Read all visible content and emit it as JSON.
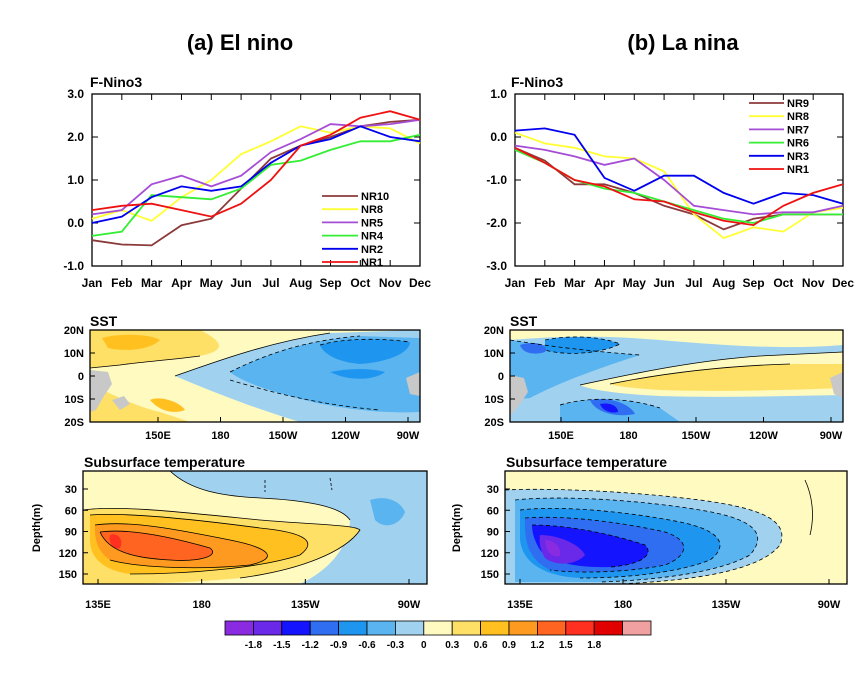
{
  "columns": [
    {
      "title": "(a) El nino",
      "line_chart": {
        "type": "line",
        "title": "F-Nino3",
        "categories": [
          "Jan",
          "Feb",
          "Mar",
          "Apr",
          "May",
          "Jun",
          "Jul",
          "Aug",
          "Sep",
          "Oct",
          "Nov",
          "Dec"
        ],
        "ylim": [
          -1.0,
          3.0
        ],
        "yticks": [
          "-1.0",
          "0.0",
          "1.0",
          "2.0",
          "3.0"
        ],
        "legend_placement": "lower-right",
        "series": [
          {
            "name": "NR10",
            "color": "#8b3a3a",
            "values": [
              -0.4,
              -0.5,
              -0.52,
              -0.05,
              0.1,
              0.8,
              1.5,
              1.8,
              2.0,
              2.25,
              2.35,
              2.4
            ]
          },
          {
            "name": "NR8",
            "color": "#ffff33",
            "values": [
              0.1,
              0.3,
              0.05,
              0.6,
              1.0,
              1.6,
              1.9,
              2.25,
              2.1,
              2.25,
              2.2,
              1.85
            ]
          },
          {
            "name": "NR5",
            "color": "#a64dd6",
            "values": [
              0.2,
              0.3,
              0.9,
              1.1,
              0.85,
              1.1,
              1.65,
              1.95,
              2.3,
              2.25,
              2.3,
              2.4
            ]
          },
          {
            "name": "NR4",
            "color": "#33ee33",
            "values": [
              -0.3,
              -0.2,
              0.65,
              0.6,
              0.55,
              0.8,
              1.35,
              1.45,
              1.7,
              1.9,
              1.9,
              2.05
            ]
          },
          {
            "name": "NR2",
            "color": "#0000ee",
            "values": [
              0.0,
              0.15,
              0.6,
              0.85,
              0.75,
              0.85,
              1.4,
              1.8,
              1.95,
              2.25,
              2.0,
              1.9
            ]
          },
          {
            "name": "NR1",
            "color": "#ee1111",
            "values": [
              0.3,
              0.4,
              0.45,
              0.3,
              0.15,
              0.45,
              1.0,
              1.8,
              2.05,
              2.45,
              2.6,
              2.4
            ]
          }
        ]
      },
      "sst_map": {
        "title": "SST",
        "y_tick_labels": [
          "20N",
          "10N",
          "0",
          "10S",
          "20S"
        ],
        "x_tick_labels": [
          "150E",
          "180",
          "150W",
          "120W",
          "90W"
        ]
      },
      "subsurface": {
        "title": "Subsurface temperature",
        "ylabel": "Depth(m)",
        "y_tick_labels": [
          "30",
          "60",
          "90",
          "120",
          "150"
        ],
        "x_tick_labels": [
          "135E",
          "180",
          "135W",
          "90W"
        ]
      }
    },
    {
      "title": "(b) La nina",
      "line_chart": {
        "type": "line",
        "title": "F-Nino3",
        "categories": [
          "Jan",
          "Feb",
          "Mar",
          "Apr",
          "May",
          "Jun",
          "Jul",
          "Aug",
          "Sep",
          "Oct",
          "Nov",
          "Dec"
        ],
        "ylim": [
          -3.0,
          1.0
        ],
        "yticks": [
          "-3.0",
          "-2.0",
          "-1.0",
          "0.0",
          "1.0"
        ],
        "legend_placement": "top-right",
        "series": [
          {
            "name": "NR9",
            "color": "#8b3a3a",
            "values": [
              -0.25,
              -0.55,
              -1.1,
              -1.1,
              -1.3,
              -1.6,
              -1.8,
              -2.15,
              -1.9,
              -1.8,
              -1.8,
              -1.8
            ]
          },
          {
            "name": "NR8",
            "color": "#ffff33",
            "values": [
              0.1,
              -0.15,
              -0.25,
              -0.45,
              -0.5,
              -0.8,
              -1.8,
              -2.35,
              -2.1,
              -2.2,
              -1.75,
              -1.65
            ]
          },
          {
            "name": "NR7",
            "color": "#a64dd6",
            "values": [
              -0.2,
              -0.3,
              -0.45,
              -0.65,
              -0.5,
              -1.0,
              -1.6,
              -1.7,
              -1.8,
              -1.75,
              -1.75,
              -1.6
            ]
          },
          {
            "name": "NR6",
            "color": "#33ee33",
            "values": [
              -0.3,
              -0.6,
              -1.0,
              -1.2,
              -1.3,
              -1.5,
              -1.7,
              -1.9,
              -2.0,
              -1.8,
              -1.8,
              -1.8
            ]
          },
          {
            "name": "NR3",
            "color": "#0000ee",
            "values": [
              0.15,
              0.2,
              0.05,
              -0.95,
              -1.25,
              -0.9,
              -0.9,
              -1.3,
              -1.55,
              -1.3,
              -1.35,
              -1.55
            ]
          },
          {
            "name": "NR1",
            "color": "#ee1111",
            "values": [
              -0.25,
              -0.6,
              -1.0,
              -1.15,
              -1.45,
              -1.5,
              -1.75,
              -1.95,
              -2.05,
              -1.6,
              -1.3,
              -1.1
            ]
          }
        ]
      },
      "sst_map": {
        "title": "SST",
        "y_tick_labels": [
          "20N",
          "10N",
          "0",
          "10S",
          "20S"
        ],
        "x_tick_labels": [
          "150E",
          "180",
          "150W",
          "120W",
          "90W"
        ]
      },
      "subsurface": {
        "title": "Subsurface temperature",
        "ylabel": "Depth(m)",
        "y_tick_labels": [
          "30",
          "60",
          "90",
          "120",
          "150"
        ],
        "x_tick_labels": [
          "135E",
          "180",
          "135W",
          "90W"
        ]
      }
    }
  ],
  "colorbar": {
    "labels": [
      "-1.8",
      "-1.5",
      "-1.2",
      "-0.9",
      "-0.6",
      "-0.3",
      "0",
      "0.3",
      "0.6",
      "0.9",
      "1.2",
      "1.5",
      "1.8"
    ],
    "colors": [
      "#8a2be2",
      "#6a28e8",
      "#1414ff",
      "#2f6ef0",
      "#1e96f0",
      "#5ab4f0",
      "#a0d2f0",
      "#fffac0",
      "#ffe066",
      "#ffc020",
      "#ff9a20",
      "#ff6420",
      "#ff3020",
      "#e00000",
      "#f0a0a0"
    ]
  }
}
